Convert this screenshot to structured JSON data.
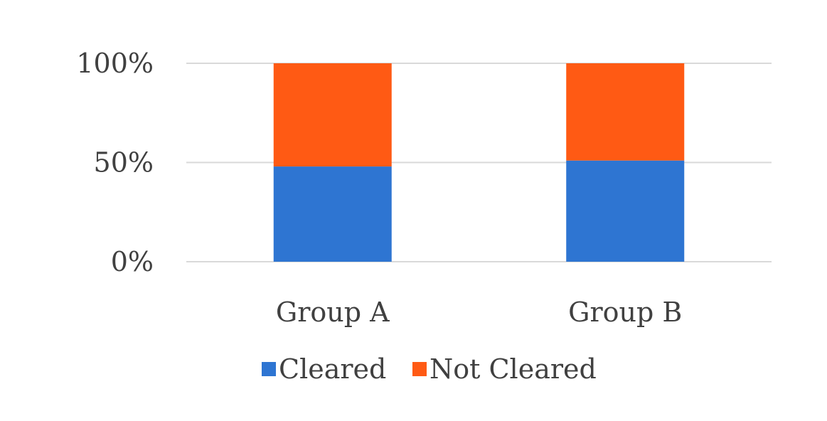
{
  "chart_data": {
    "type": "bar",
    "stacked": true,
    "percent_stacked": true,
    "title": "",
    "xlabel": "",
    "ylabel": "",
    "categories": [
      "Group A",
      "Group B"
    ],
    "series": [
      {
        "name": "Cleared",
        "values": [
          48,
          51
        ],
        "color": "#2e75d2"
      },
      {
        "name": "Not Cleared",
        "values": [
          52,
          49
        ],
        "color": "#ff5a14"
      }
    ],
    "ylim": [
      0,
      100
    ],
    "y_ticks": [
      {
        "value": 0,
        "label": "0%"
      },
      {
        "value": 50,
        "label": "50%"
      },
      {
        "value": 100,
        "label": "100%"
      }
    ],
    "grid": true,
    "legend_position": "bottom"
  }
}
